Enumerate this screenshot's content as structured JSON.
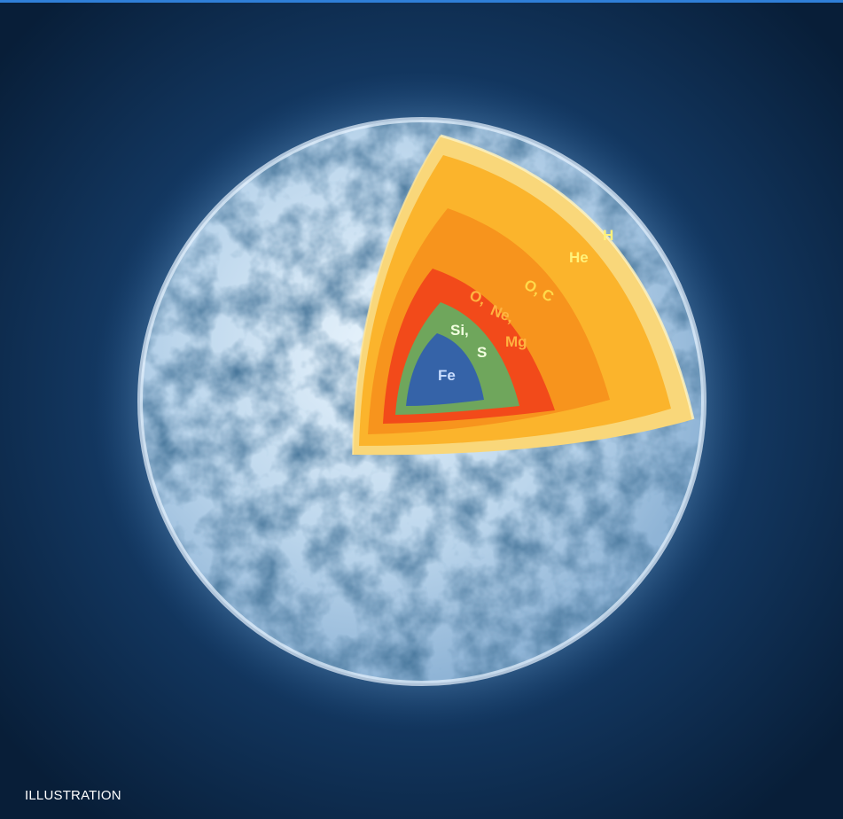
{
  "caption": "ILLUSTRATION",
  "shells": [
    {
      "id": "h",
      "label": "H",
      "color": "#f9d77a"
    },
    {
      "id": "he",
      "label": "He",
      "color": "#fbb42c"
    },
    {
      "id": "oc",
      "label": "O, C",
      "color": "#f7941d"
    },
    {
      "id": "one",
      "label": "O, Ne, Mg",
      "color": "#f24a1a"
    },
    {
      "id": "sis",
      "label": "Si, S",
      "color": "#6fa65c"
    },
    {
      "id": "fe",
      "label": "Fe",
      "color": "#3563a8"
    }
  ],
  "colors": {
    "background": "#0b2747",
    "star_surface": "#cfe4f5",
    "fe_text": "#c8ddff",
    "shell_text": "#fff27a"
  }
}
